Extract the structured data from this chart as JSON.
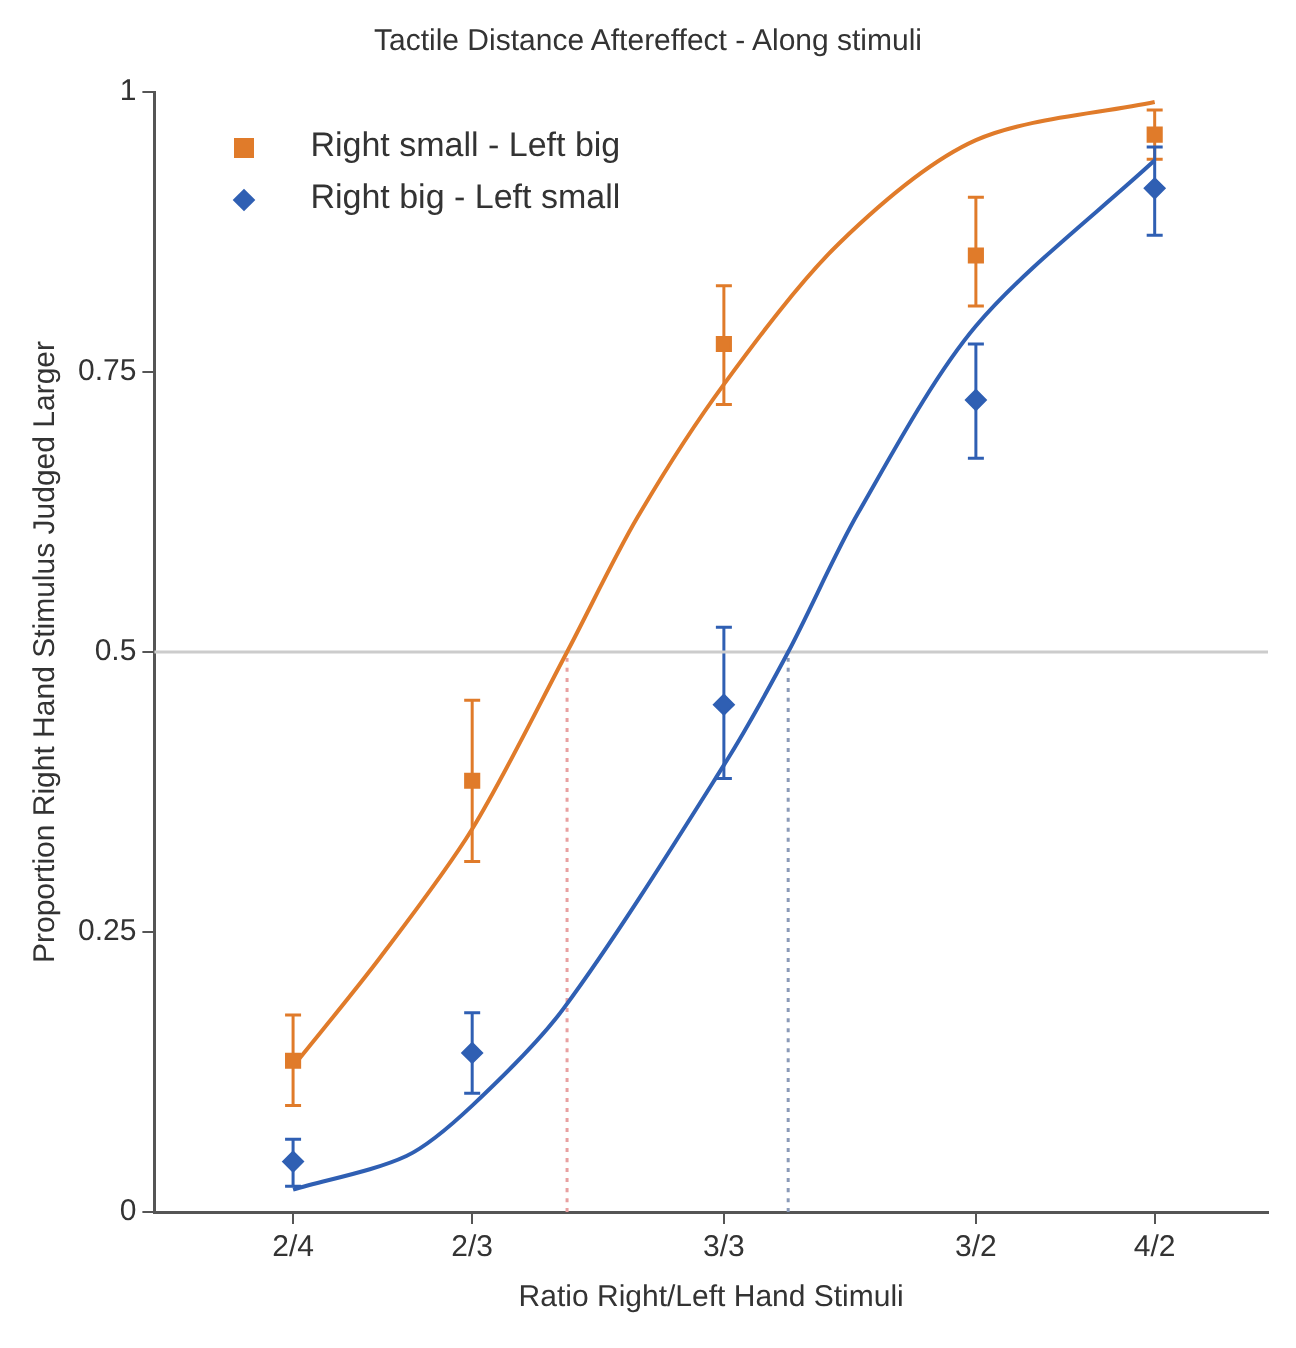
{
  "chart_data": {
    "type": "scatter",
    "title": "Tactile Distance Aftereffect - Along stimuli",
    "xlabel": "Ratio Right/Left Hand Stimuli",
    "ylabel": "Proportion Right Hand Stimulus Judged Larger",
    "log": "x",
    "xlim": [
      0.4,
      2.4
    ],
    "xticks": [
      {
        "value": 0.5,
        "label": "2/4"
      },
      {
        "value": 0.667,
        "label": "2/3"
      },
      {
        "value": 1,
        "label": "3/3"
      },
      {
        "value": 1.5,
        "label": "3/2"
      },
      {
        "value": 2,
        "label": "4/2"
      }
    ],
    "ylim": [
      0,
      1
    ],
    "yticks": [
      0,
      0.25,
      0.5,
      0.75,
      1
    ],
    "grid": false,
    "legend": "top left",
    "ref_lines": [
      {
        "axis": "y",
        "value": 0.5,
        "color": "#cccccc"
      }
    ],
    "series": [
      {
        "name": "Right small - Left big",
        "marker": "square",
        "color": "#e07b2a",
        "x": [
          0.5,
          0.667,
          1,
          1.5,
          2
        ],
        "values": [
          0.135,
          0.385,
          0.775,
          0.854,
          0.962
        ],
        "errors": [
          [
            0.095,
            0.176
          ],
          [
            0.313,
            0.457
          ],
          [
            0.721,
            0.827
          ],
          [
            0.809,
            0.906
          ],
          [
            0.94,
            0.984
          ]
        ]
      },
      {
        "name": "Right big - Left small",
        "marker": "diamond",
        "color": "#2f5fb3",
        "x": [
          0.5,
          0.667,
          1,
          1.5,
          2
        ],
        "values": [
          0.045,
          0.142,
          0.453,
          0.725,
          0.914
        ],
        "errors": [
          [
            0.023,
            0.065
          ],
          [
            0.106,
            0.178
          ],
          [
            0.387,
            0.522
          ],
          [
            0.673,
            0.775
          ],
          [
            0.872,
            0.951
          ]
        ]
      },
      {
        "type": "line",
        "marker": "none",
        "color": "#e07b2a",
        "x": [
          0.5,
          0.575,
          0.667,
          0.777,
          0.87,
          1,
          1.204,
          1.5,
          2
        ],
        "values": [
          0.13,
          0.227,
          0.342,
          0.5,
          0.62,
          0.739,
          0.865,
          0.957,
          0.991
        ]
      },
      {
        "type": "line",
        "marker": "none",
        "color": "#2f5fb3",
        "x": [
          0.5,
          0.6,
          0.667,
          0.773,
          1,
          1.109,
          1.241,
          1.5,
          2
        ],
        "values": [
          0.02,
          0.05,
          0.095,
          0.182,
          0.399,
          0.5,
          0.624,
          0.791,
          0.939
        ]
      },
      {
        "type": "line",
        "marker": "none",
        "line_style": "dotted",
        "color": "#e8a0a0",
        "x": [
          0.777,
          0.777
        ],
        "values": [
          0,
          0.5
        ]
      },
      {
        "type": "line",
        "marker": "none",
        "line_style": "dotted",
        "color": "#8a9ab8",
        "x": [
          1.109,
          1.109
        ],
        "values": [
          0,
          0.5
        ]
      }
    ]
  }
}
